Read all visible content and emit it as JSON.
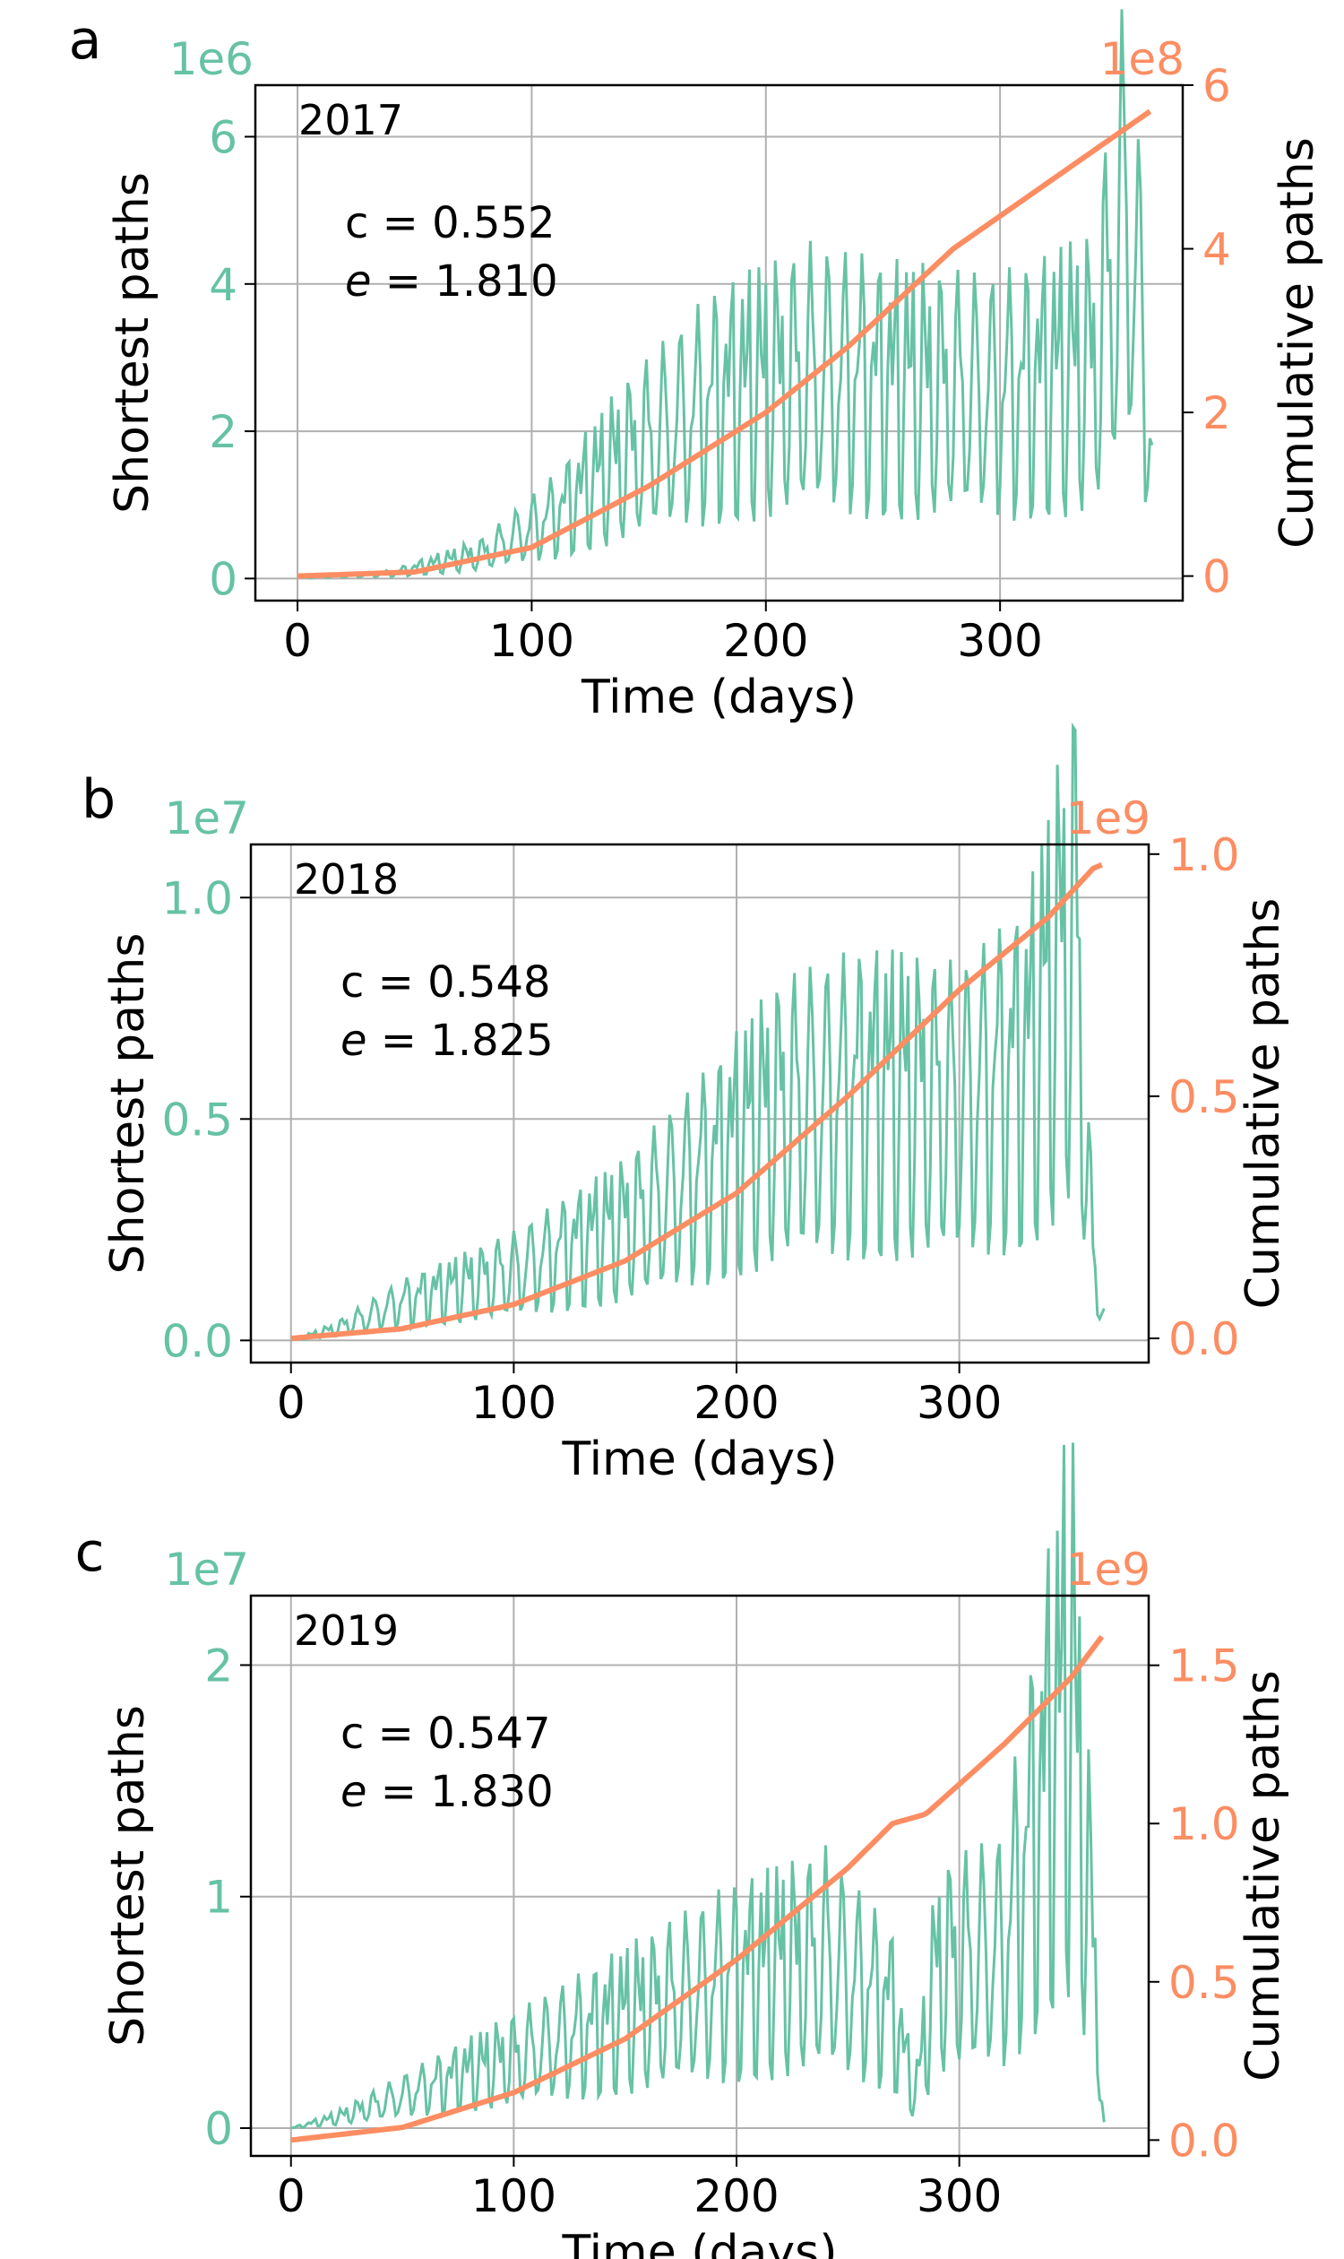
{
  "colors": {
    "left": "#66c2a5",
    "right": "#fc8d62",
    "grid": "#b0b0b0",
    "axis": "#000000"
  },
  "chart_data": [
    {
      "type": "line",
      "panel_label": "a",
      "year_label": "2017",
      "annotation": {
        "c_prefix": "c =",
        "c_value": "0.552",
        "e_symbol": "e",
        "e_eq": " =",
        "e_value": "1.810"
      },
      "xlabel": "Time (days)",
      "ylabel_left": "Shortest paths",
      "ylabel_right": "Cumulative paths",
      "left_multiplier": "1e6",
      "right_multiplier": "1e8",
      "xlim": [
        -18,
        378
      ],
      "ylim_left": [
        -0.3,
        6.7
      ],
      "ylim_right": [
        -0.3,
        6.0
      ],
      "xticks": [
        0,
        100,
        200,
        300
      ],
      "yticks_left": [
        0,
        2,
        4,
        6
      ],
      "yticks_right": [
        0,
        2,
        4,
        6
      ],
      "grid": true,
      "series": [
        {
          "name": "Shortest paths",
          "axis": "left",
          "noise": 0.25,
          "profile": [
            [
              0,
              0.01
            ],
            [
              40,
              0.08
            ],
            [
              80,
              0.4
            ],
            [
              110,
              1.0
            ],
            [
              140,
              1.9
            ],
            [
              180,
              2.8
            ],
            [
              220,
              3.2
            ],
            [
              260,
              3.0
            ],
            [
              300,
              2.9
            ],
            [
              340,
              3.3
            ],
            [
              355,
              5.9
            ],
            [
              365,
              2.1
            ]
          ]
        },
        {
          "name": "Cumulative paths",
          "axis": "right",
          "profile": [
            [
              0,
              0.0
            ],
            [
              50,
              0.05
            ],
            [
              100,
              0.35
            ],
            [
              150,
              1.1
            ],
            [
              200,
              2.0
            ],
            [
              235,
              2.8
            ],
            [
              280,
              4.0
            ],
            [
              320,
              4.8
            ],
            [
              350,
              5.4
            ],
            [
              365,
              5.7
            ]
          ]
        }
      ]
    },
    {
      "type": "line",
      "panel_label": "b",
      "year_label": "2018",
      "annotation": {
        "c_prefix": "c =",
        "c_value": "0.548",
        "e_symbol": "e",
        "e_eq": " =",
        "e_value": "1.825"
      },
      "xlabel": "Time (days)",
      "ylabel_left": "Shortest paths",
      "ylabel_right": "Cumulative paths",
      "left_multiplier": "1e7",
      "right_multiplier": "1e9",
      "xlim": [
        -18,
        385
      ],
      "ylim_left": [
        -0.05,
        1.12
      ],
      "ylim_right": [
        -0.05,
        1.02
      ],
      "xticks": [
        0,
        100,
        200,
        300
      ],
      "yticks_left": [
        "0.0",
        "0.5",
        "1.0"
      ],
      "yticks_right": [
        "0.0",
        "0.5",
        "1.0"
      ],
      "grid": true,
      "series": [
        {
          "name": "Shortest paths",
          "axis": "left",
          "noise": 0.2,
          "profile": [
            [
              0,
              0.0
            ],
            [
              20,
              0.03
            ],
            [
              50,
              0.1
            ],
            [
              100,
              0.18
            ],
            [
              150,
              0.3
            ],
            [
              190,
              0.46
            ],
            [
              220,
              0.6
            ],
            [
              260,
              0.65
            ],
            [
              300,
              0.62
            ],
            [
              330,
              0.72
            ],
            [
              352,
              1.07
            ],
            [
              360,
              0.2
            ],
            [
              365,
              0.07
            ]
          ]
        },
        {
          "name": "Cumulative paths",
          "axis": "right",
          "profile": [
            [
              0,
              0.0
            ],
            [
              50,
              0.02
            ],
            [
              100,
              0.07
            ],
            [
              150,
              0.16
            ],
            [
              200,
              0.3
            ],
            [
              250,
              0.5
            ],
            [
              300,
              0.72
            ],
            [
              340,
              0.87
            ],
            [
              360,
              0.97
            ],
            [
              365,
              0.98
            ]
          ]
        }
      ]
    },
    {
      "type": "line",
      "panel_label": "c",
      "year_label": "2019",
      "annotation": {
        "c_prefix": "c =",
        "c_value": "0.547",
        "e_symbol": "e",
        "e_eq": " =",
        "e_value": "1.830"
      },
      "xlabel": "Time (days)",
      "ylabel_left": "Shortest paths",
      "ylabel_right": "Cumulative paths",
      "left_multiplier": "1e7",
      "right_multiplier": "1e9",
      "xlim": [
        -18,
        385
      ],
      "ylim_left": [
        -0.12,
        2.3
      ],
      "ylim_right": [
        -0.05,
        1.72
      ],
      "xticks": [
        0,
        100,
        200,
        300
      ],
      "yticks_left": [
        0,
        1,
        2
      ],
      "yticks_right": [
        "0.0",
        "0.5",
        "1.0",
        "1.5"
      ],
      "grid": true,
      "series": [
        {
          "name": "Shortest paths",
          "axis": "left",
          "noise": 0.25,
          "profile": [
            [
              0,
              0.0
            ],
            [
              20,
              0.05
            ],
            [
              60,
              0.2
            ],
            [
              100,
              0.35
            ],
            [
              150,
              0.55
            ],
            [
              200,
              0.75
            ],
            [
              240,
              0.85
            ],
            [
              270,
              0.6
            ],
            [
              280,
              0.15
            ],
            [
              290,
              0.8
            ],
            [
              320,
              0.9
            ],
            [
              350,
              2.2
            ],
            [
              360,
              0.9
            ],
            [
              365,
              0.02
            ]
          ]
        },
        {
          "name": "Cumulative paths",
          "axis": "right",
          "profile": [
            [
              0,
              0.0
            ],
            [
              50,
              0.04
            ],
            [
              100,
              0.15
            ],
            [
              150,
              0.32
            ],
            [
              200,
              0.57
            ],
            [
              250,
              0.86
            ],
            [
              270,
              1.0
            ],
            [
              285,
              1.03
            ],
            [
              320,
              1.25
            ],
            [
              350,
              1.46
            ],
            [
              365,
              1.6
            ]
          ]
        }
      ]
    }
  ]
}
